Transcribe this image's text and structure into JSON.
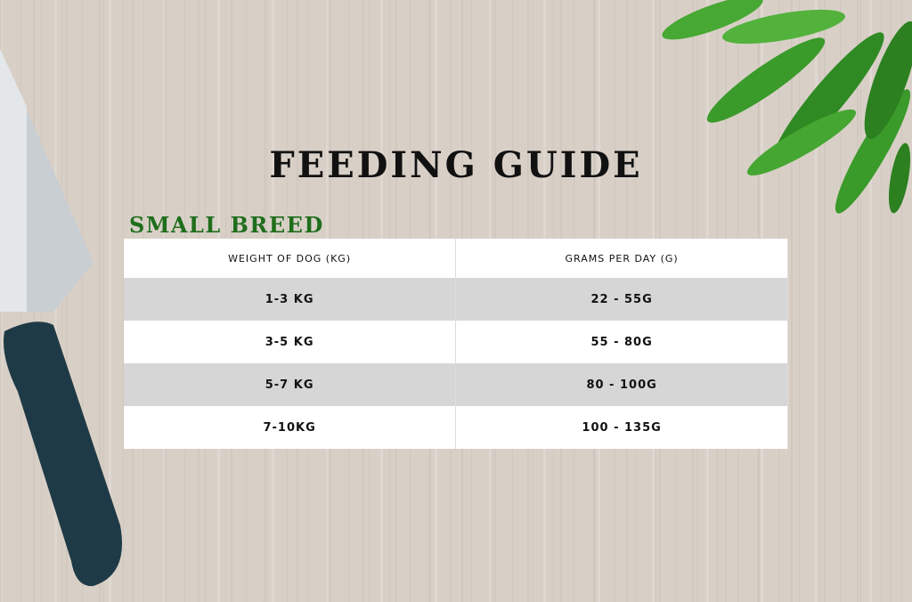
{
  "title": "FEEDING GUIDE",
  "subtitle": "SMALL BREED",
  "table": {
    "header": [
      "WEIGHT OF DOG (KG)",
      "GRAMS PER DAY (G)"
    ],
    "rows": [
      [
        "1-3 KG",
        "22 - 55G"
      ],
      [
        "3-5 KG",
        "55 - 80G"
      ],
      [
        "5-7 KG",
        "80 - 100G"
      ],
      [
        "7-10KG",
        "100 - 135G"
      ]
    ]
  }
}
